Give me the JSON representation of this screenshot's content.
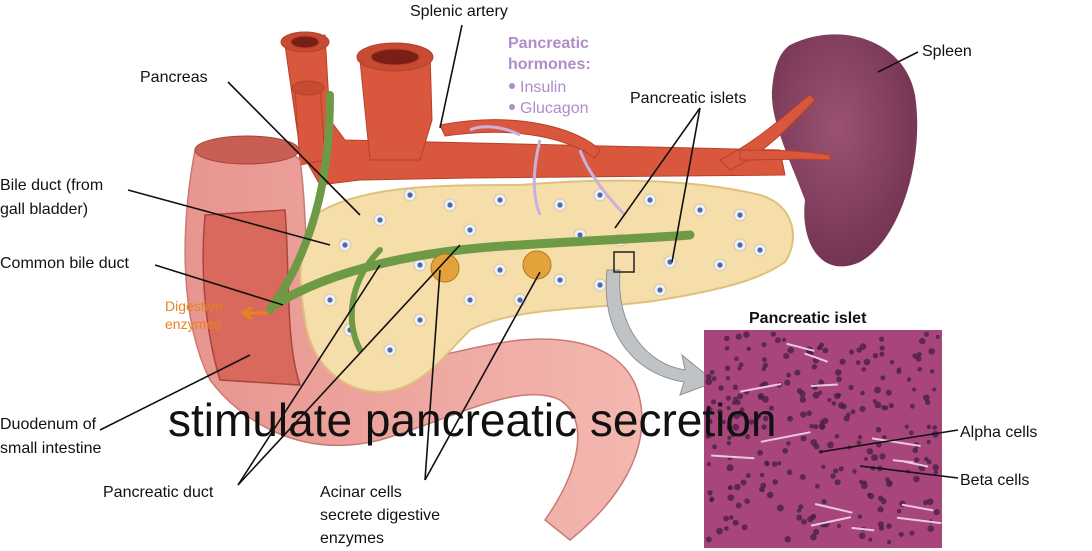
{
  "labels": {
    "splenic_artery": "Splenic artery",
    "pancreatic_hormones": {
      "title": [
        "Pancreatic",
        "hormones:"
      ],
      "items": [
        "Insulin",
        "Glucagon"
      ]
    },
    "pancreas": "Pancreas",
    "spleen": "Spleen",
    "pancreatic_islets": "Pancreatic islets",
    "bile_duct": [
      "Bile duct (from",
      "gall bladder)"
    ],
    "common_bile_duct": "Common bile duct",
    "digestive_enzymes": [
      "Digestive",
      "enzymes"
    ],
    "duodenum": [
      "Duodenum of",
      "small intestine"
    ],
    "pancreatic_duct": "Pancreatic duct",
    "acinar_cells": [
      "Acinar cells",
      "secrete digestive",
      "enzymes"
    ]
  },
  "micrograph": {
    "title": "Pancreatic islet",
    "alpha_cells": "Alpha cells",
    "beta_cells": "Beta cells"
  },
  "caption": "stimulate pancreatic secretion"
}
